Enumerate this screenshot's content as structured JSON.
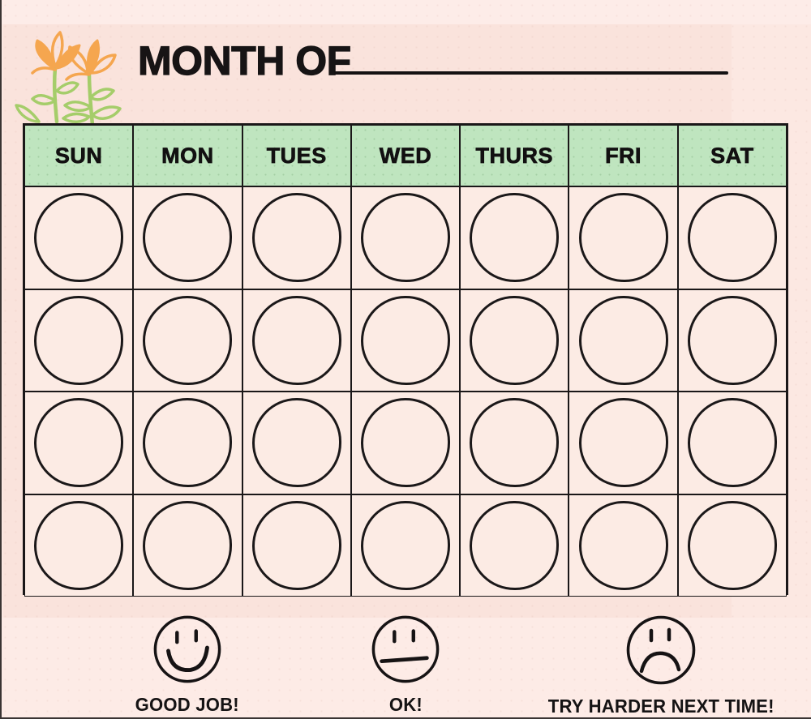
{
  "page": {
    "background_pink": "#fce8e2",
    "edge_color": "#3a3433",
    "line_black": "#1a1718"
  },
  "header": {
    "title": "MONTH OF",
    "fill_in_line": "",
    "decoration": {
      "name": "flower-doodle",
      "flower_orange": "#f5a64f",
      "leaf_green": "#a5cd6a"
    }
  },
  "calendar": {
    "days": [
      "SUN",
      "MON",
      "TUES",
      "WED",
      "THURS",
      "FRI",
      "SAT"
    ],
    "weeks": 4,
    "header_bg": "#bfe5bf",
    "cell_bg": "#fcebe4",
    "cell_shape": "circle"
  },
  "legend": {
    "items": [
      {
        "face": "happy-face",
        "label": "GOOD JOB!"
      },
      {
        "face": "neutral-face",
        "label": "OK!"
      },
      {
        "face": "sad-face",
        "label": "TRY HARDER NEXT TIME!"
      }
    ]
  }
}
